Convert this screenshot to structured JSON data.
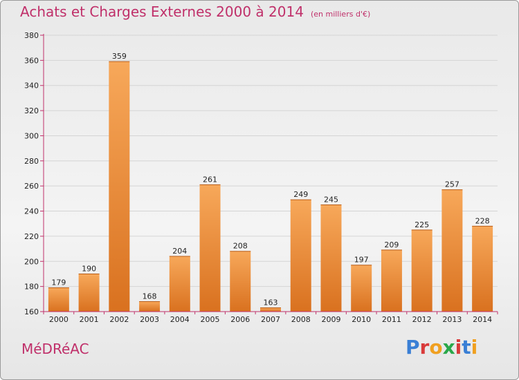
{
  "title": {
    "main": "Achats et Charges Externes 2000 à 2014",
    "unit": "(en milliers d'€)"
  },
  "footer": {
    "commune": "MéDRéAC"
  },
  "logo": {
    "text": "Proxiti",
    "colors": [
      "#3a7fd5",
      "#d93a3a",
      "#f0a020",
      "#2aa84a",
      "#d93a3a",
      "#3a7fd5",
      "#f0a020"
    ]
  },
  "colors": {
    "bar_light": "#f7a85a",
    "bar_dark": "#d9711f",
    "axis": "#c0306a",
    "title": "#c0306a"
  },
  "chart_data": {
    "type": "bar",
    "title": "Achats et Charges Externes 2000 à 2014",
    "subtitle": "(en milliers d'€)",
    "categories": [
      "2000",
      "2001",
      "2002",
      "2003",
      "2004",
      "2005",
      "2006",
      "2007",
      "2008",
      "2009",
      "2010",
      "2011",
      "2012",
      "2013",
      "2014"
    ],
    "values": [
      179,
      190,
      359,
      168,
      204,
      261,
      208,
      163,
      249,
      245,
      197,
      209,
      225,
      257,
      228
    ],
    "ylim": [
      160,
      380
    ],
    "yticks": [
      160,
      180,
      200,
      220,
      240,
      260,
      280,
      300,
      320,
      340,
      360,
      380
    ],
    "grid": true
  }
}
